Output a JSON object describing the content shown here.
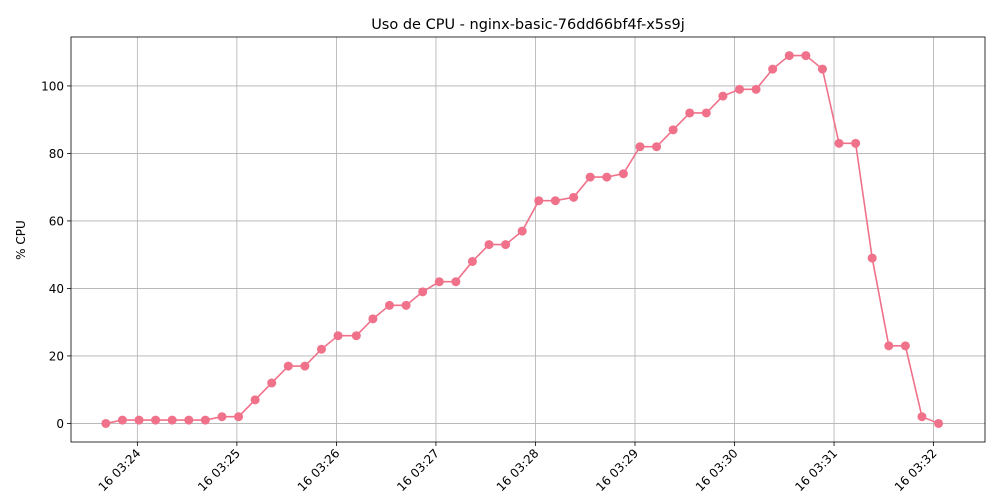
{
  "chart_data": {
    "type": "line",
    "title": "Uso de CPU - nginx-basic-76dd66bf4f-x5s9j",
    "xlabel": "",
    "ylabel": "% CPU",
    "x_ticks": [
      "16 03:24",
      "16 03:25",
      "16 03:26",
      "16 03:27",
      "16 03:28",
      "16 03:29",
      "16 03:30",
      "16 03:31",
      "16 03:32"
    ],
    "x_tick_minutes": [
      24,
      25,
      26,
      27,
      28,
      29,
      30,
      31,
      32
    ],
    "y_ticks": [
      0,
      20,
      40,
      60,
      80,
      100
    ],
    "xlim": [
      "16 03:23:20",
      "16 03:32:31"
    ],
    "ylim": [
      -5.5,
      114.5
    ],
    "grid": true,
    "color": "#f0718a",
    "series": [
      {
        "x": [
          "16 03:23:41",
          "16 03:23:51",
          "16 03:24:01",
          "16 03:24:11",
          "16 03:24:21",
          "16 03:24:31",
          "16 03:24:41",
          "16 03:24:51",
          "16 03:25:01",
          "16 03:25:11",
          "16 03:25:21",
          "16 03:25:31",
          "16 03:25:41",
          "16 03:25:51",
          "16 03:26:01",
          "16 03:26:12",
          "16 03:26:22",
          "16 03:26:32",
          "16 03:26:42",
          "16 03:26:52",
          "16 03:27:02",
          "16 03:27:12",
          "16 03:27:22",
          "16 03:27:32",
          "16 03:27:42",
          "16 03:27:52",
          "16 03:28:02",
          "16 03:28:12",
          "16 03:28:23",
          "16 03:28:33",
          "16 03:28:43",
          "16 03:28:53",
          "16 03:29:03",
          "16 03:29:13",
          "16 03:29:23",
          "16 03:29:33",
          "16 03:29:43",
          "16 03:29:53",
          "16 03:30:03",
          "16 03:30:13",
          "16 03:30:23",
          "16 03:30:33",
          "16 03:30:43",
          "16 03:30:53",
          "16 03:31:03",
          "16 03:31:13",
          "16 03:31:23",
          "16 03:31:33",
          "16 03:31:43",
          "16 03:31:53",
          "16 03:32:03"
        ],
        "values": [
          0,
          1,
          1,
          1,
          1,
          1,
          1,
          2,
          2,
          7,
          12,
          17,
          17,
          22,
          26,
          26,
          31,
          35,
          35,
          39,
          42,
          42,
          48,
          53,
          53,
          57,
          66,
          66,
          67,
          73,
          73,
          74,
          82,
          82,
          87,
          92,
          92,
          97,
          99,
          99,
          105,
          109,
          109,
          105,
          83,
          83,
          49,
          23,
          23,
          2,
          0
        ]
      }
    ]
  }
}
